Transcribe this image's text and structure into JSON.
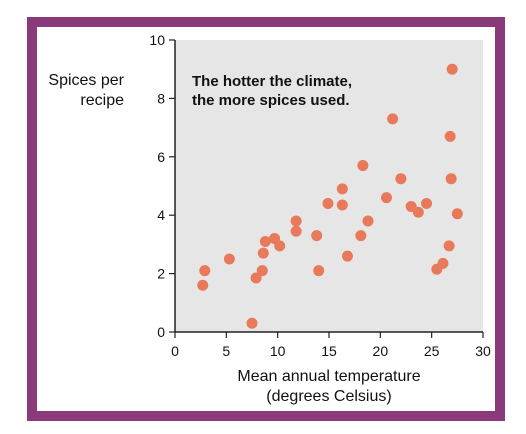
{
  "chart_data": {
    "type": "scatter",
    "ylabel_lines": [
      "Spices per",
      "recipe"
    ],
    "xlabel_lines": [
      "Mean annual temperature",
      "(degrees Celsius)"
    ],
    "annotation_lines": [
      "The hotter the climate,",
      "the more spices used."
    ],
    "xlim": [
      0,
      30
    ],
    "ylim": [
      0,
      10
    ],
    "xticks": [
      0,
      5,
      10,
      15,
      20,
      25,
      30
    ],
    "yticks": [
      0,
      2,
      4,
      6,
      8,
      10
    ],
    "grid": false,
    "point_color": "#e8795a",
    "points": [
      {
        "x": 2.7,
        "y": 1.6
      },
      {
        "x": 2.9,
        "y": 2.1
      },
      {
        "x": 5.3,
        "y": 2.5
      },
      {
        "x": 7.5,
        "y": 0.3
      },
      {
        "x": 7.9,
        "y": 1.85
      },
      {
        "x": 8.5,
        "y": 2.1
      },
      {
        "x": 8.6,
        "y": 2.7
      },
      {
        "x": 8.8,
        "y": 3.1
      },
      {
        "x": 9.7,
        "y": 3.2
      },
      {
        "x": 10.2,
        "y": 2.95
      },
      {
        "x": 11.8,
        "y": 3.8
      },
      {
        "x": 11.8,
        "y": 3.45
      },
      {
        "x": 13.8,
        "y": 3.3
      },
      {
        "x": 14.0,
        "y": 2.1
      },
      {
        "x": 14.9,
        "y": 4.4
      },
      {
        "x": 16.3,
        "y": 4.9
      },
      {
        "x": 16.3,
        "y": 4.35
      },
      {
        "x": 16.8,
        "y": 2.6
      },
      {
        "x": 18.1,
        "y": 3.3
      },
      {
        "x": 18.3,
        "y": 5.7
      },
      {
        "x": 18.8,
        "y": 3.8
      },
      {
        "x": 20.6,
        "y": 4.6
      },
      {
        "x": 21.2,
        "y": 7.3
      },
      {
        "x": 22.0,
        "y": 5.25
      },
      {
        "x": 23.0,
        "y": 4.3
      },
      {
        "x": 23.7,
        "y": 4.1
      },
      {
        "x": 24.5,
        "y": 4.4
      },
      {
        "x": 25.5,
        "y": 2.15
      },
      {
        "x": 26.1,
        "y": 2.35
      },
      {
        "x": 26.7,
        "y": 2.95
      },
      {
        "x": 26.8,
        "y": 6.7
      },
      {
        "x": 26.9,
        "y": 5.25
      },
      {
        "x": 27.0,
        "y": 9.0
      },
      {
        "x": 27.5,
        "y": 4.05
      }
    ]
  }
}
